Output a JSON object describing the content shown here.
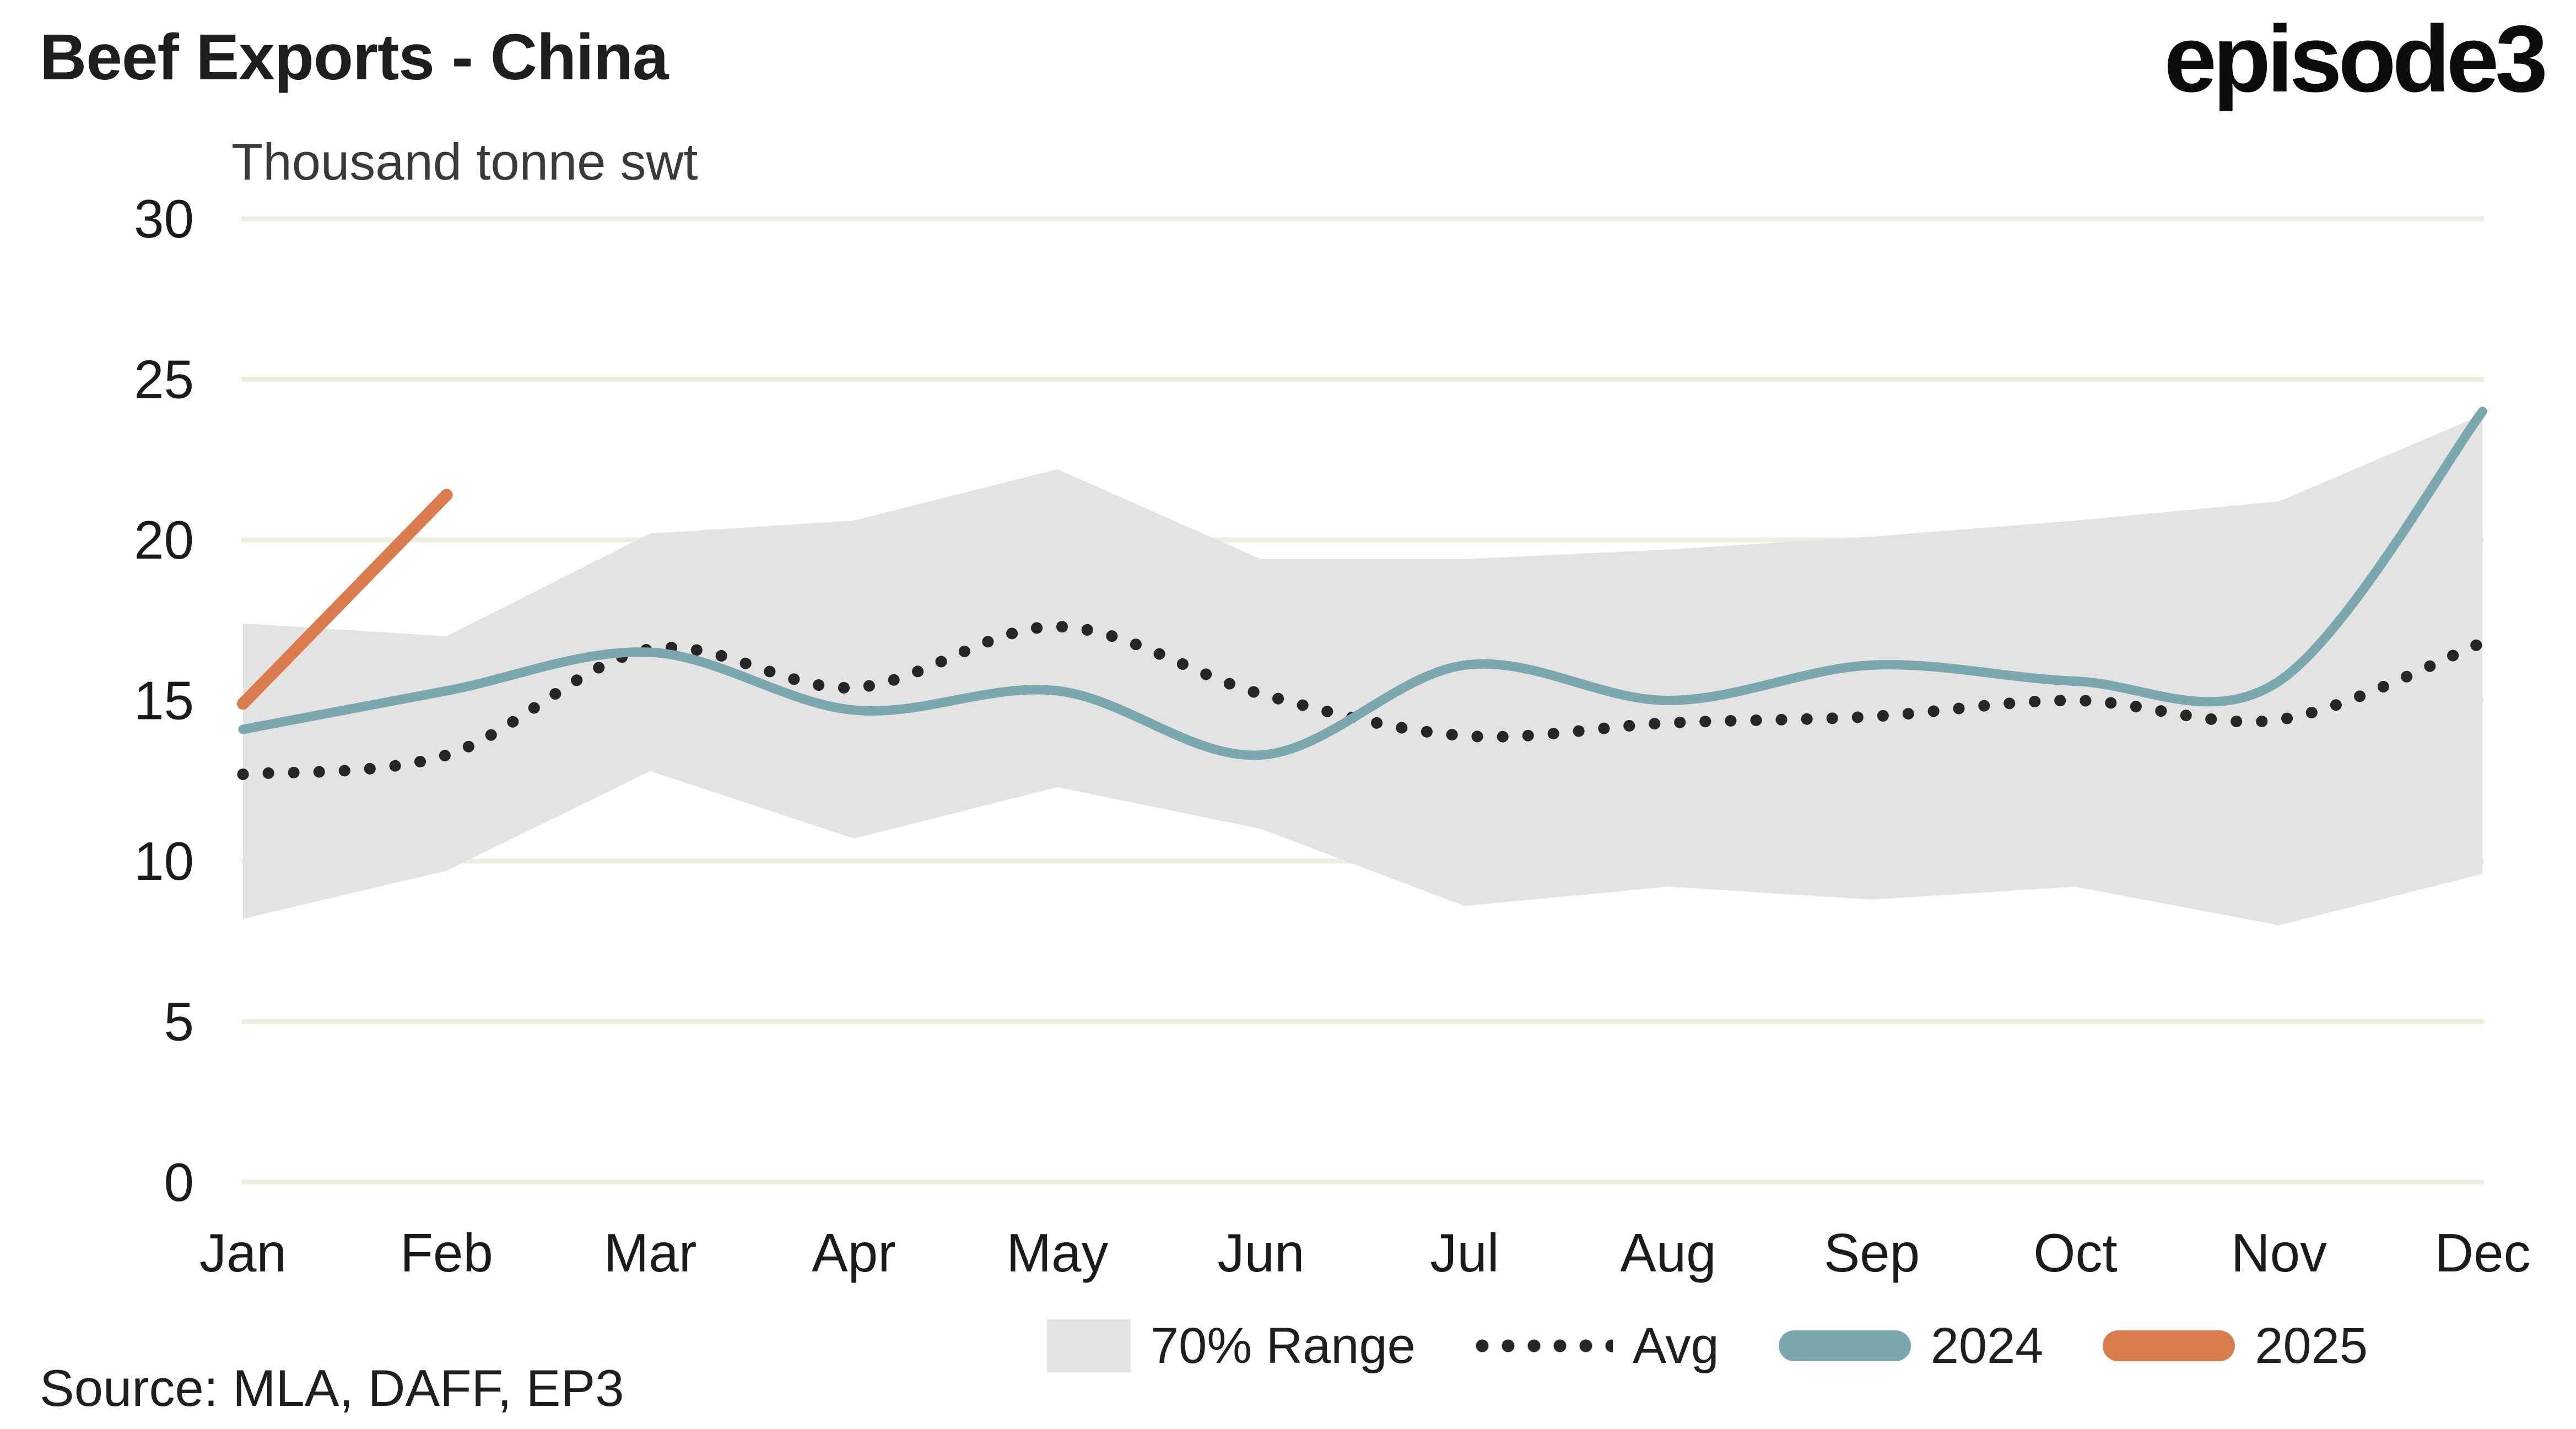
{
  "header": {
    "title": "Beef Exports - China",
    "logo": "episode3"
  },
  "chart": {
    "unit_label": "Thousand tonne swt"
  },
  "legend": {
    "items": [
      {
        "label": "70% Range",
        "swatch": "band-swatch",
        "color": "#E3E3E3"
      },
      {
        "label": "Avg",
        "swatch": "dotted-swatch",
        "color": "#262626"
      },
      {
        "label": "2024",
        "swatch": "line-swatch",
        "color": "#7AA8AE"
      },
      {
        "label": "2025",
        "swatch": "line-swatch",
        "color": "#DB7C4F"
      }
    ]
  },
  "source": {
    "text": "Source: MLA, DAFF, EP3"
  },
  "colors": {
    "band": "#E3E3E3",
    "avg": "#262626",
    "y2024": "#7AA8AE",
    "y2025": "#DB7C4F",
    "gridline": "#EEEDE0",
    "text": "#1b1b1b"
  },
  "chart_data": {
    "type": "line",
    "title": "Beef Exports - China",
    "xlabel": "",
    "ylabel": "Thousand tonne swt",
    "categories": [
      "Jan",
      "Feb",
      "Mar",
      "Apr",
      "May",
      "Jun",
      "Jul",
      "Aug",
      "Sep",
      "Oct",
      "Nov",
      "Dec"
    ],
    "ylim": [
      0,
      30
    ],
    "yticks": [
      0,
      5,
      10,
      15,
      20,
      25,
      30
    ],
    "grid": true,
    "legend_position": "bottom",
    "series": [
      {
        "name": "70% Range",
        "type": "band",
        "color": "#E3E3E3",
        "low": [
          8.2,
          9.7,
          12.8,
          10.7,
          12.3,
          11.0,
          8.6,
          9.2,
          8.8,
          9.2,
          8.0,
          9.6
        ],
        "high": [
          17.4,
          17.0,
          20.2,
          20.6,
          22.2,
          19.4,
          19.4,
          19.7,
          20.1,
          20.6,
          21.2,
          23.9
        ]
      },
      {
        "name": "Avg",
        "type": "line",
        "style": "dotted",
        "color": "#262626",
        "values": [
          12.7,
          13.3,
          16.6,
          15.4,
          17.3,
          15.2,
          13.9,
          14.3,
          14.5,
          15.0,
          14.4,
          16.8
        ]
      },
      {
        "name": "2024",
        "type": "line",
        "style": "solid",
        "color": "#7AA8AE",
        "values": [
          14.1,
          15.3,
          16.5,
          14.7,
          15.3,
          13.3,
          16.1,
          15.0,
          16.1,
          15.6,
          15.6,
          24.0
        ]
      },
      {
        "name": "2025",
        "type": "line",
        "style": "solid",
        "color": "#DB7C4F",
        "values": [
          14.9,
          21.4,
          null,
          null,
          null,
          null,
          null,
          null,
          null,
          null,
          null,
          null
        ]
      }
    ]
  }
}
